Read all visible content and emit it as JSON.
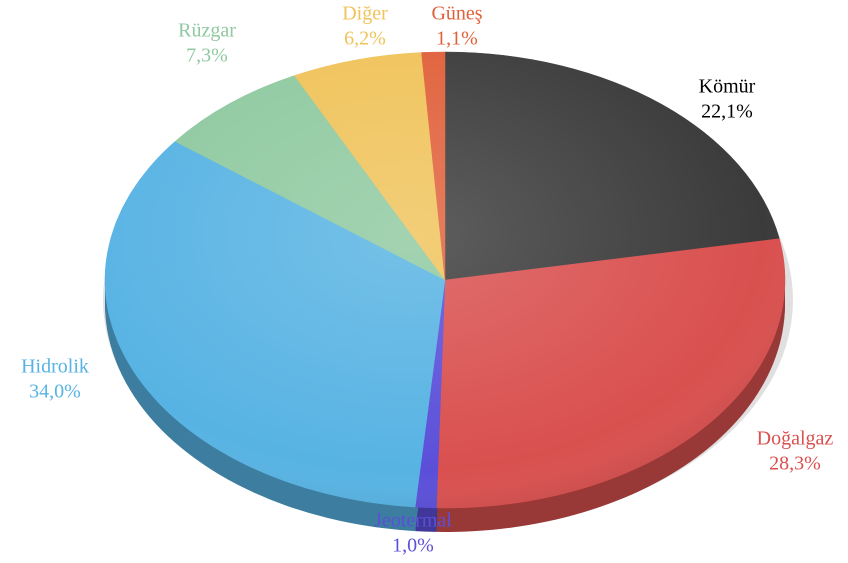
{
  "chart_data": {
    "type": "pie",
    "categories": [
      "Kömür",
      "Doğalgaz",
      "Jeotermal",
      "Hidrolik",
      "Rüzgar",
      "Diğer",
      "Güneş"
    ],
    "values": [
      22.1,
      28.3,
      1.0,
      34.0,
      7.3,
      6.2,
      1.1
    ],
    "value_labels": [
      "22,1%",
      "28,3%",
      "1,0%",
      "34,0%",
      "7,3%",
      "6,2%",
      "1,1%"
    ],
    "colors": [
      "#3b3b3b",
      "#d9504f",
      "#5b4fd9",
      "#57b3e3",
      "#8fc9a0",
      "#f0c35a",
      "#e0603a"
    ]
  }
}
